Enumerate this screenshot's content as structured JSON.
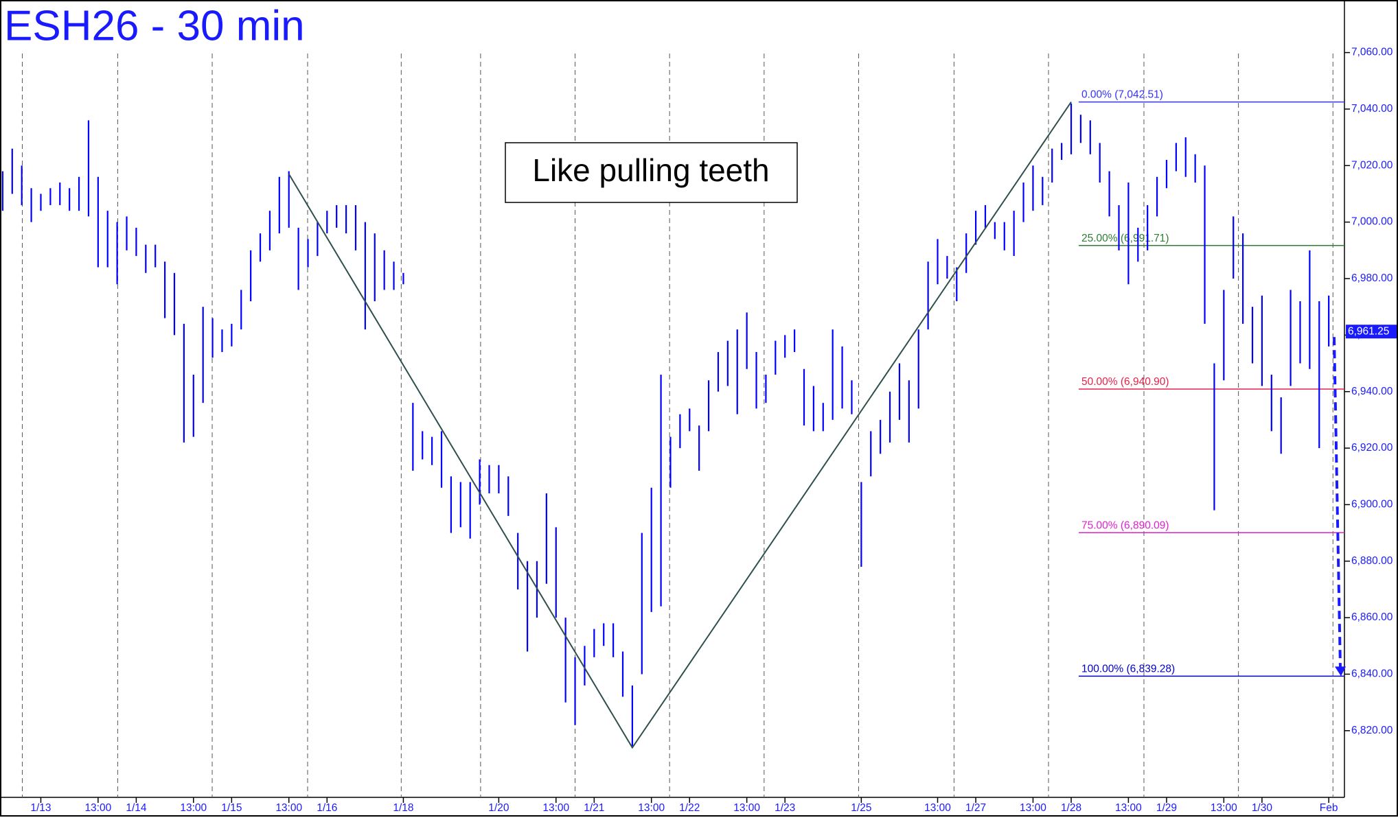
{
  "chart_data": {
    "type": "hilo",
    "title": "ESH26 - 30 min",
    "annotation": "Like pulling teeth",
    "ylim": [
      6796.4,
      7078.6
    ],
    "yticks": [
      {
        "value": 6820,
        "label": "6,820.00"
      },
      {
        "value": 6840,
        "label": "6,840.00"
      },
      {
        "value": 6860,
        "label": "6,860.00"
      },
      {
        "value": 6880,
        "label": "6,880.00"
      },
      {
        "value": 6900,
        "label": "6,900.00"
      },
      {
        "value": 6920,
        "label": "6,920.00"
      },
      {
        "value": 6940,
        "label": "6,940.00"
      },
      {
        "value": 6960,
        "label": "6,960.00"
      },
      {
        "value": 6980,
        "label": "6,980.00"
      },
      {
        "value": 7000,
        "label": "7,000.00"
      },
      {
        "value": 7020,
        "label": "7,020.00"
      },
      {
        "value": 7040,
        "label": "7,040.00"
      },
      {
        "value": 7060,
        "label": "7,060.00"
      }
    ],
    "categories": [
      null,
      null,
      null,
      null,
      "1/13",
      null,
      null,
      null,
      null,
      null,
      "13:00",
      null,
      null,
      null,
      "1/14",
      null,
      null,
      null,
      null,
      null,
      "13:00",
      null,
      null,
      null,
      "1/15",
      null,
      null,
      null,
      null,
      null,
      "13:00",
      null,
      null,
      null,
      "1/16",
      null,
      null,
      null,
      null,
      null,
      null,
      null,
      "1/18",
      null,
      null,
      null,
      null,
      null,
      null,
      null,
      null,
      null,
      "1/20",
      null,
      null,
      null,
      null,
      null,
      "13:00",
      null,
      null,
      null,
      "1/21",
      null,
      null,
      null,
      null,
      null,
      "13:00",
      null,
      null,
      null,
      "1/22",
      null,
      null,
      null,
      null,
      null,
      "13:00",
      null,
      null,
      null,
      "1/23",
      null,
      null,
      null,
      null,
      null,
      null,
      null,
      "1/25",
      null,
      null,
      null,
      null,
      null,
      null,
      null,
      "13:00",
      null,
      null,
      null,
      "1/27",
      null,
      null,
      null,
      null,
      null,
      "13:00",
      null,
      null,
      null,
      "1/28",
      null,
      null,
      null,
      null,
      null,
      "13:00",
      null,
      null,
      null,
      "1/29",
      null,
      null,
      null,
      null,
      null,
      "13:00",
      null,
      null,
      null,
      "1/30",
      null,
      null,
      null,
      null,
      null,
      null,
      "Feb"
    ],
    "series": [
      {
        "color": "#0000ff",
        "high": [
          7018,
          7026,
          7020,
          7012,
          7010,
          7012,
          7014,
          7012,
          7016,
          7036,
          7016,
          7004,
          7000,
          7002,
          6998,
          6992,
          6992,
          6986,
          6982,
          6964,
          6946,
          6970,
          6966,
          6962,
          6964,
          6976,
          6990,
          6996,
          7004,
          7016,
          7018,
          6998,
          6994,
          7000,
          7004,
          7006,
          7006,
          7006,
          7000,
          6996,
          6990,
          6986,
          6982,
          6936,
          6926,
          6924,
          6926,
          6910,
          6908,
          6908,
          6916,
          6914,
          6914,
          6910,
          6890,
          6880,
          6880,
          6904,
          6892,
          6860,
          6846,
          6850,
          6856,
          6858,
          6858,
          6848,
          6836,
          6890,
          6906,
          6946,
          6924,
          6932,
          6934,
          6928,
          6944,
          6954,
          6958,
          6962,
          6968,
          6954,
          6946,
          6958,
          6960,
          6962,
          6948,
          6942,
          6936,
          6962,
          6956,
          6944,
          6908,
          6926,
          6930,
          6940,
          6950,
          6944,
          6962,
          6986,
          6994,
          6988,
          6984,
          6996,
          7004,
          7006,
          7000,
          7000,
          7004,
          7014,
          7020,
          7016,
          7026,
          7028,
          7042,
          7038,
          7036,
          7028,
          7018,
          7006,
          7014,
          6998,
          7006,
          7016,
          7022,
          7028,
          7030,
          7024,
          7020,
          6950,
          6976,
          7002,
          6996,
          6970,
          6974,
          6946,
          6938,
          6976,
          6972,
          6990,
          6972,
          6974
        ],
        "low": [
          7004,
          7010,
          7006,
          7000,
          7004,
          7006,
          7006,
          7004,
          7004,
          7002,
          6984,
          6984,
          6978,
          6990,
          6988,
          6982,
          6984,
          6966,
          6960,
          6922,
          6924,
          6936,
          6952,
          6954,
          6956,
          6962,
          6972,
          6986,
          6990,
          6996,
          6998,
          6976,
          6984,
          6988,
          6996,
          6998,
          6996,
          6990,
          6962,
          6972,
          6976,
          6976,
          6978,
          6912,
          6916,
          6914,
          6906,
          6890,
          6892,
          6888,
          6900,
          6904,
          6904,
          6896,
          6870,
          6848,
          6860,
          6872,
          6860,
          6830,
          6822,
          6836,
          6846,
          6850,
          6846,
          6832,
          6814,
          6840,
          6862,
          6864,
          6906,
          6920,
          6926,
          6912,
          6926,
          6940,
          6942,
          6932,
          6948,
          6934,
          6936,
          6946,
          6952,
          6954,
          6928,
          6926,
          6926,
          6930,
          6934,
          6932,
          6878,
          6910,
          6918,
          6922,
          6930,
          6922,
          6934,
          6962,
          6978,
          6980,
          6972,
          6982,
          6992,
          6998,
          6994,
          6990,
          6988,
          7000,
          7004,
          7006,
          7014,
          7022,
          7024,
          7028,
          7024,
          7014,
          7002,
          6990,
          6978,
          6986,
          6990,
          7002,
          7012,
          7018,
          7016,
          7014,
          6964,
          6898,
          6944,
          6980,
          6964,
          6950,
          6942,
          6926,
          6918,
          6942,
          6950,
          6948,
          6920,
          6956
        ]
      }
    ],
    "trendline": {
      "color": "#2f4f4f",
      "x": [
        30,
        66,
        112
      ],
      "values": [
        7017,
        6814,
        7042.51
      ]
    },
    "fib_levels": [
      {
        "label": "0.00% (7,042.51)",
        "value": 7042.51,
        "color": "#3333ff"
      },
      {
        "label": "25.00% (6,991.71)",
        "value": 6991.71,
        "color": "#2e7d32"
      },
      {
        "label": "50.00% (6,940.90)",
        "value": 6940.9,
        "color": "#e8204a"
      },
      {
        "label": "75.00% (6,890.09)",
        "value": 6890.09,
        "color": "#e020d0"
      },
      {
        "label": "100.00% (6,839.28)",
        "value": 6839.28,
        "color": "#0000cc"
      }
    ],
    "last_price": {
      "value": 6961.25,
      "label": "6,961.25"
    }
  }
}
